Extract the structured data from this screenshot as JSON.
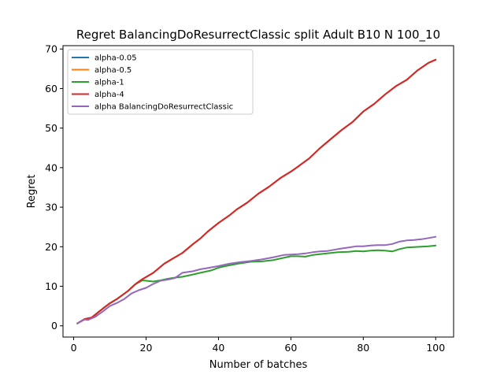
{
  "chart_data": {
    "type": "line",
    "title": "Regret BalancingDoResurrectClassic split Adult B10 N 100_10",
    "xlabel": "Number of batches",
    "ylabel": "Regret",
    "xlim": [
      -2.95,
      104.95
    ],
    "ylim": [
      -2.84,
      70.84
    ],
    "xticks": [
      0,
      20,
      40,
      60,
      80,
      100
    ],
    "yticks": [
      0,
      10,
      20,
      30,
      40,
      50,
      60,
      70
    ],
    "grid": false,
    "legend_position": "upper-left",
    "colors": {
      "alpha-0.05": "#1f77b4",
      "alpha-0.5": "#ff7f0e",
      "alpha-1": "#2ca02c",
      "alpha-4": "#d62728",
      "alpha BalancingDoResurrectClassic": "#9467bd"
    },
    "series": [
      {
        "name": "alpha-0.05",
        "x": [
          1,
          3,
          5,
          8,
          10,
          12,
          15,
          17,
          19,
          22,
          25,
          27,
          30,
          33,
          35,
          37,
          40,
          43,
          45,
          48,
          51,
          54,
          57,
          60,
          62,
          65,
          68,
          71,
          74,
          77,
          80,
          83,
          86,
          89,
          92,
          95,
          98,
          100
        ],
        "y": [
          0.6,
          1.7,
          2.1,
          4.3,
          5.7,
          6.8,
          8.8,
          10.5,
          11.8,
          13.4,
          15.7,
          16.8,
          18.4,
          20.7,
          22.1,
          23.8,
          26.0,
          27.9,
          29.4,
          31.2,
          33.4,
          35.2,
          37.3,
          39.0,
          40.3,
          42.3,
          44.9,
          47.2,
          49.5,
          51.5,
          54.2,
          56.1,
          58.5,
          60.6,
          62.2,
          64.6,
          66.5,
          67.3
        ]
      },
      {
        "name": "alpha-0.5",
        "x": [
          1,
          3,
          5,
          8,
          10,
          12,
          15,
          17,
          19,
          22,
          25,
          27,
          30,
          33,
          35,
          37,
          40,
          43,
          45,
          48,
          51,
          54,
          57,
          60,
          62,
          65,
          68,
          71,
          74,
          77,
          80,
          83,
          86,
          89,
          92,
          95,
          98,
          100
        ],
        "y": [
          0.6,
          1.7,
          2.1,
          4.3,
          5.7,
          6.8,
          8.8,
          10.5,
          11.8,
          13.4,
          15.7,
          16.8,
          18.4,
          20.7,
          22.1,
          23.8,
          26.0,
          27.9,
          29.4,
          31.2,
          33.4,
          35.2,
          37.3,
          39.0,
          40.3,
          42.3,
          44.9,
          47.2,
          49.5,
          51.5,
          54.2,
          56.1,
          58.5,
          60.6,
          62.2,
          64.6,
          66.5,
          67.3
        ]
      },
      {
        "name": "alpha-1",
        "x": [
          1,
          3,
          5,
          8,
          10,
          12,
          15,
          17,
          19,
          22,
          24,
          26,
          28,
          30,
          33,
          35,
          38,
          40,
          43,
          46,
          49,
          52,
          55,
          58,
          60,
          62,
          64,
          66,
          68,
          70,
          73,
          76,
          78,
          80,
          82,
          84,
          86,
          88,
          90,
          92,
          94,
          96,
          98,
          100
        ],
        "y": [
          0.6,
          1.7,
          2.1,
          4.3,
          5.7,
          6.8,
          8.8,
          10.5,
          11.5,
          11.2,
          11.5,
          11.9,
          12.2,
          12.4,
          13.0,
          13.4,
          14.0,
          14.7,
          15.3,
          15.8,
          16.2,
          16.3,
          16.6,
          17.2,
          17.6,
          17.6,
          17.5,
          17.9,
          18.1,
          18.3,
          18.6,
          18.7,
          18.9,
          18.8,
          19.0,
          19.1,
          19.0,
          18.8,
          19.4,
          19.8,
          19.9,
          20.0,
          20.1,
          20.3
        ]
      },
      {
        "name": "alpha-4",
        "x": [
          1,
          3,
          5,
          8,
          10,
          12,
          15,
          17,
          19,
          22,
          25,
          27,
          30,
          33,
          35,
          37,
          40,
          43,
          45,
          48,
          51,
          54,
          57,
          60,
          62,
          65,
          68,
          71,
          74,
          77,
          80,
          83,
          86,
          89,
          92,
          95,
          98,
          100
        ],
        "y": [
          0.6,
          1.7,
          2.1,
          4.3,
          5.7,
          6.8,
          8.8,
          10.5,
          11.8,
          13.4,
          15.7,
          16.8,
          18.4,
          20.7,
          22.1,
          23.8,
          26.0,
          27.9,
          29.4,
          31.2,
          33.4,
          35.2,
          37.3,
          39.0,
          40.3,
          42.3,
          44.9,
          47.2,
          49.5,
          51.5,
          54.2,
          56.1,
          58.5,
          60.6,
          62.2,
          64.6,
          66.5,
          67.3
        ]
      },
      {
        "name": "alpha BalancingDoResurrectClassic",
        "x": [
          1,
          3,
          4,
          6,
          8,
          10,
          12,
          14,
          16,
          18,
          20,
          22,
          24,
          26,
          28,
          30,
          33,
          35,
          37,
          40,
          43,
          46,
          49,
          52,
          55,
          58,
          60,
          62,
          64,
          66,
          68,
          70,
          73,
          76,
          78,
          80,
          82,
          84,
          86,
          88,
          90,
          92,
          94,
          96,
          98,
          100
        ],
        "y": [
          0.6,
          1.6,
          1.5,
          2.3,
          3.6,
          5.0,
          5.8,
          6.8,
          8.2,
          9.0,
          9.6,
          10.6,
          11.4,
          11.7,
          12.1,
          13.4,
          13.8,
          14.3,
          14.6,
          15.1,
          15.7,
          16.1,
          16.4,
          16.8,
          17.3,
          17.9,
          18.0,
          18.1,
          18.3,
          18.6,
          18.8,
          18.9,
          19.4,
          19.8,
          20.1,
          20.1,
          20.3,
          20.4,
          20.4,
          20.7,
          21.3,
          21.6,
          21.7,
          21.9,
          22.2,
          22.5
        ]
      }
    ]
  }
}
